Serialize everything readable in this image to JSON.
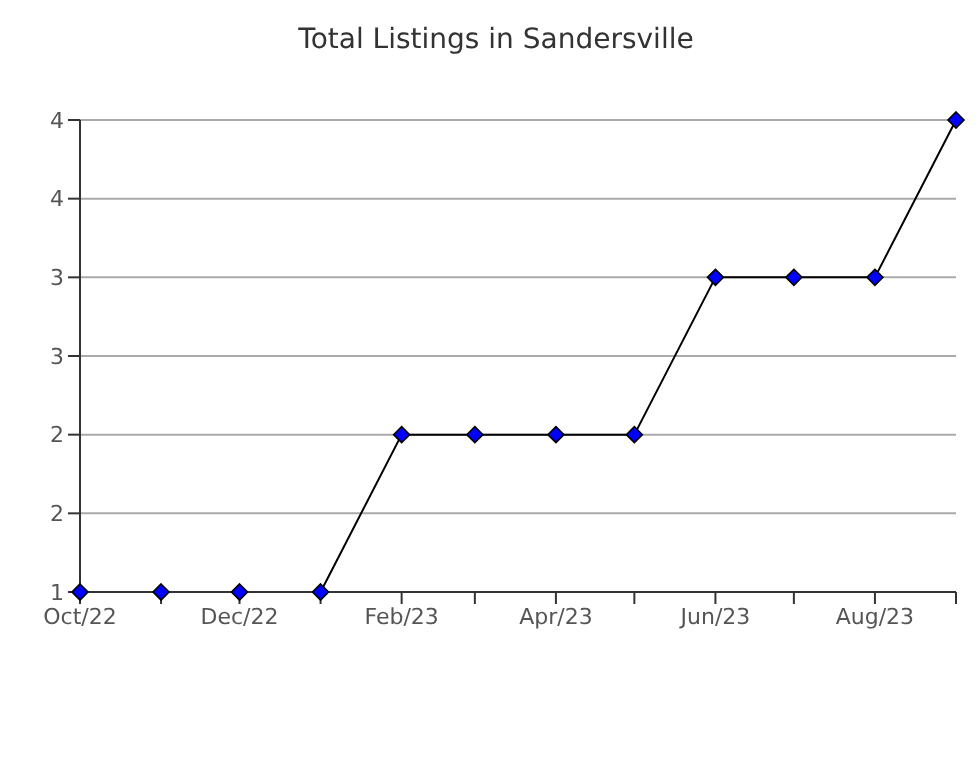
{
  "chart_data": {
    "type": "line",
    "title": "Total Listings in Sandersville",
    "x": [
      "2022-10",
      "2022-11",
      "2022-12",
      "2023-01",
      "2023-02",
      "2023-03",
      "2023-04",
      "2023-05",
      "2023-06",
      "2023-07",
      "2023-08",
      "2023-09"
    ],
    "series": [
      {
        "color": "#0000ff",
        "values": [
          1,
          1,
          1,
          1,
          2,
          2,
          2,
          2,
          3,
          3,
          3,
          4
        ]
      }
    ],
    "xlim": [
      "2022-10",
      "2023-09"
    ],
    "xticks": [
      {
        "value": "2022-10",
        "label": "Oct/22"
      },
      {
        "value": "2022-11",
        "label": null
      },
      {
        "value": "2022-12",
        "label": "Dec/22"
      },
      {
        "value": "2023-01",
        "label": null
      },
      {
        "value": "2023-02",
        "label": "Feb/23"
      },
      {
        "value": "2023-03",
        "label": null
      },
      {
        "value": "2023-04",
        "label": "Apr/23"
      },
      {
        "value": "2023-05",
        "label": null
      },
      {
        "value": "2023-06",
        "label": "Jun/23"
      },
      {
        "value": "2023-07",
        "label": null
      },
      {
        "value": "2023-08",
        "label": "Aug/23"
      },
      {
        "value": "2023-09",
        "label": null
      }
    ],
    "ylim": [
      1,
      4
    ],
    "yticks": [
      1,
      {
        "value": 1.5,
        "label": "2"
      },
      2,
      {
        "value": 2.5,
        "label": "3"
      },
      3,
      {
        "value": 3.5,
        "label": "4"
      },
      4
    ],
    "grid": "y",
    "marker": "diamond",
    "line_style": "solid"
  }
}
